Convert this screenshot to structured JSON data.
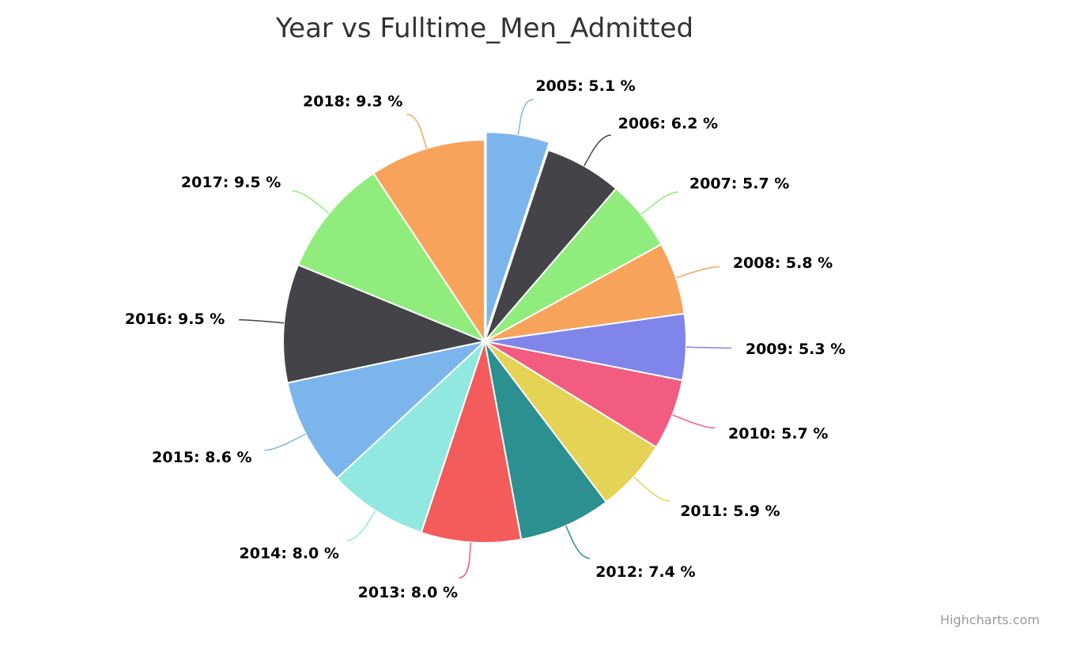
{
  "chart_data": {
    "type": "pie",
    "title": "Year vs Fulltime_Men_Admitted",
    "label_format": "{name}: {value} %",
    "slices": [
      {
        "name": "2005",
        "value": 5.1,
        "color": "#7cb5ec",
        "sliced": true
      },
      {
        "name": "2006",
        "value": 6.2,
        "color": "#434348"
      },
      {
        "name": "2007",
        "value": 5.7,
        "color": "#90ed7d"
      },
      {
        "name": "2008",
        "value": 5.8,
        "color": "#f7a35c"
      },
      {
        "name": "2009",
        "value": 5.3,
        "color": "#8085e9"
      },
      {
        "name": "2010",
        "value": 5.7,
        "color": "#f15c80"
      },
      {
        "name": "2011",
        "value": 5.9,
        "color": "#e4d354"
      },
      {
        "name": "2012",
        "value": 7.4,
        "color": "#2b908f"
      },
      {
        "name": "2013",
        "value": 8.0,
        "color": "#f45b5b"
      },
      {
        "name": "2014",
        "value": 8.0,
        "color": "#91e8e1"
      },
      {
        "name": "2015",
        "value": 8.6,
        "color": "#7cb5ec"
      },
      {
        "name": "2016",
        "value": 9.5,
        "color": "#434348"
      },
      {
        "name": "2017",
        "value": 9.5,
        "color": "#90ed7d"
      },
      {
        "name": "2018",
        "value": 9.3,
        "color": "#f7a35c"
      }
    ]
  },
  "credits": {
    "text": "Highcharts.com"
  }
}
